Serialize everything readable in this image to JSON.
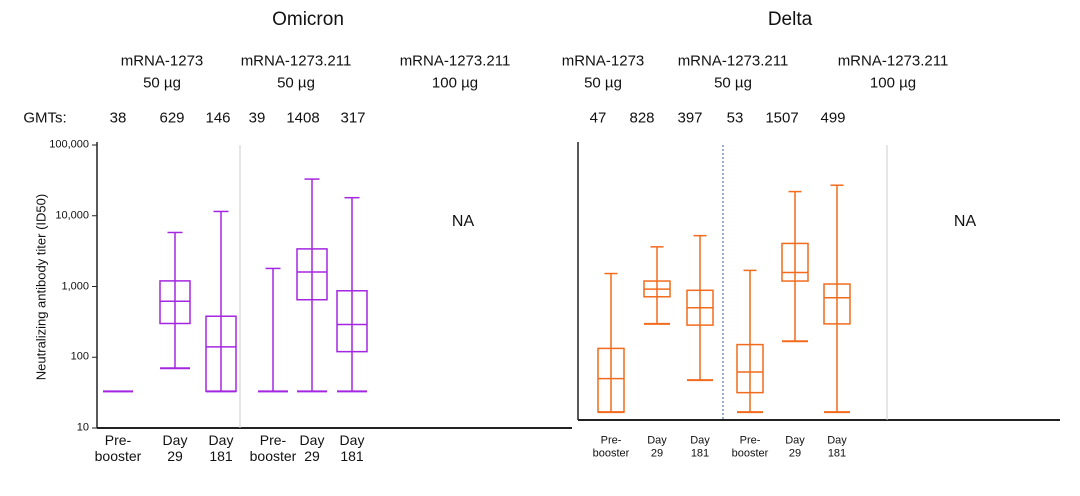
{
  "chart_data": [
    {
      "type": "box",
      "title": "Omicron",
      "y_label": "Neutralizing antibody titer (ID50)",
      "log_scale": true,
      "color": "#a526e0",
      "groups": [
        {
          "name": "mRNA-1273",
          "dose": "50 µg"
        },
        {
          "name": "mRNA-1273.211",
          "dose": "50 µg"
        },
        {
          "name": "mRNA-1273.211",
          "dose": "100 µg"
        }
      ],
      "gmt_label": "GMTs:",
      "gmts": [
        38,
        629,
        146,
        39,
        1408,
        317
      ],
      "categories": [
        "Pre-\nbooster",
        "Day\n29",
        "Day\n181",
        "Pre-\nbooster",
        "Day\n29",
        "Day\n181"
      ],
      "boxes": [
        {
          "min": 33,
          "q1": 33,
          "median": 33,
          "q3": 33,
          "max": 33
        },
        {
          "min": 70,
          "q1": 300,
          "median": 620,
          "q3": 1200,
          "max": 5800
        },
        {
          "min": 33,
          "q1": 33,
          "median": 140,
          "q3": 380,
          "max": 11500
        },
        {
          "min": 33,
          "q1": 33,
          "median": 33,
          "q3": 33,
          "max": 1800
        },
        {
          "min": 33,
          "q1": 650,
          "median": 1600,
          "q3": 3400,
          "max": 33000
        },
        {
          "min": 33,
          "q1": 120,
          "median": 290,
          "q3": 870,
          "max": 18000
        }
      ],
      "not_available": "NA",
      "ylim": [
        10,
        100000
      ],
      "yticks": [
        10,
        100,
        {
          "value": 1000,
          "label": "1,000"
        },
        {
          "value": 10000,
          "label": "10,000"
        },
        {
          "value": 100000,
          "label": "100,000"
        }
      ]
    },
    {
      "type": "box",
      "title": "Delta",
      "log_scale": true,
      "color": "#f26b1d",
      "groups": [
        {
          "name": "mRNA-1273",
          "dose": "50 µg"
        },
        {
          "name": "mRNA-1273.211",
          "dose": "50 µg"
        },
        {
          "name": "mRNA-1273.211",
          "dose": "100 µg"
        }
      ],
      "gmts": [
        47,
        828,
        397,
        53,
        1507,
        499
      ],
      "categories": [
        "Pre-\nbooster",
        "Day\n29",
        "Day\n181",
        "Pre-\nbooster",
        "Day\n29",
        "Day\n181"
      ],
      "boxes": [
        {
          "min": 13,
          "q1": 13,
          "median": 40,
          "q3": 110,
          "max": 1350
        },
        {
          "min": 250,
          "q1": 620,
          "median": 800,
          "q3": 1050,
          "max": 3300
        },
        {
          "min": 38,
          "q1": 240,
          "median": 430,
          "q3": 770,
          "max": 4800
        },
        {
          "min": 13,
          "q1": 25,
          "median": 50,
          "q3": 125,
          "max": 1500
        },
        {
          "min": 140,
          "q1": 1050,
          "median": 1400,
          "q3": 3700,
          "max": 21000
        },
        {
          "min": 13,
          "q1": 250,
          "median": 600,
          "q3": 950,
          "max": 26000
        }
      ],
      "not_available": "NA",
      "ylim": [
        10,
        100000
      ]
    }
  ]
}
